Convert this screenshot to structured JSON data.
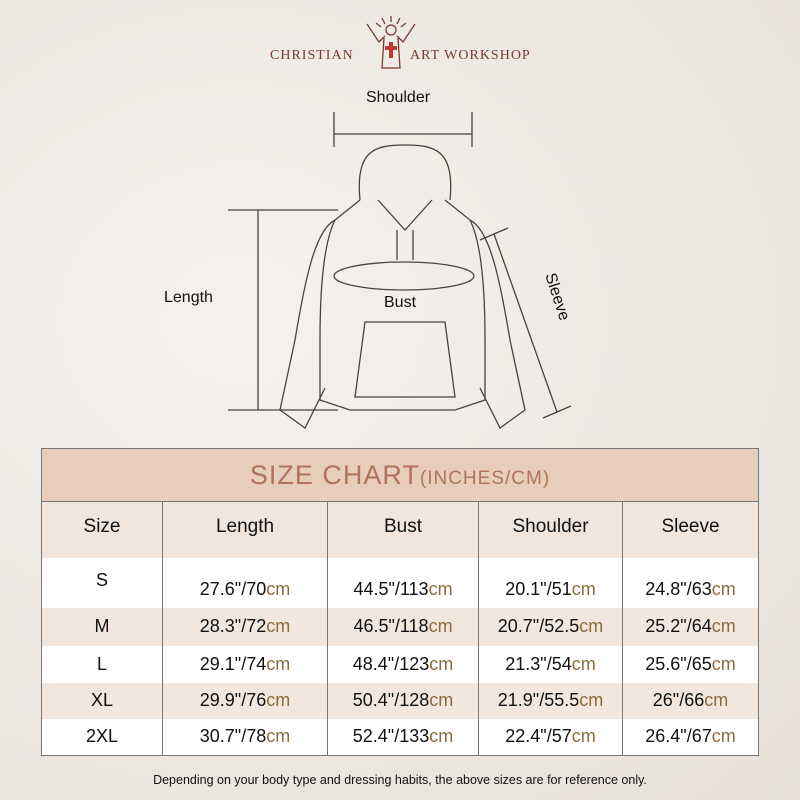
{
  "logo": {
    "left": "CHRISTIAN",
    "right": "ART WORKSHOP"
  },
  "diagram": {
    "shoulder": "Shoulder",
    "length": "Length",
    "bust": "Bust",
    "sleeve": "Sleeve"
  },
  "table": {
    "title": "SIZE CHART",
    "title_units": "(INCHES/CM)",
    "headers": [
      "Size",
      "Length",
      "Bust",
      "Shoulder",
      "Sleeve"
    ],
    "rows": [
      {
        "size": "S",
        "cells": [
          [
            "27.6\"/70",
            "cm"
          ],
          [
            "44.5\"/113",
            "cm"
          ],
          [
            "20.1\"/51",
            "cm"
          ],
          [
            "24.8\"/63",
            "cm"
          ]
        ]
      },
      {
        "size": "M",
        "cells": [
          [
            "28.3\"/72",
            "cm"
          ],
          [
            "46.5\"/118",
            "cm"
          ],
          [
            "20.7\"/52.5",
            "cm"
          ],
          [
            "25.2\"/64",
            "cm"
          ]
        ]
      },
      {
        "size": "L",
        "cells": [
          [
            "29.1\"/74",
            "cm"
          ],
          [
            "48.4\"/123",
            "cm"
          ],
          [
            "21.3\"/54",
            "cm"
          ],
          [
            "25.6\"/65",
            "cm"
          ]
        ]
      },
      {
        "size": "XL",
        "cells": [
          [
            "29.9\"/76",
            "cm"
          ],
          [
            "50.4\"/128",
            "cm"
          ],
          [
            "21.9\"/55.5",
            "cm"
          ],
          [
            "26\"/66",
            "cm"
          ]
        ]
      },
      {
        "size": "2XL",
        "cells": [
          [
            "30.7\"/78",
            "cm"
          ],
          [
            "52.4\"/133",
            "cm"
          ],
          [
            "22.4\"/57",
            "cm"
          ],
          [
            "26.4\"/67",
            "cm"
          ]
        ]
      }
    ]
  },
  "note": "Depending on your body type and dressing habits, the above sizes are for reference only.",
  "colors": {
    "title_bg": "#e8cdbc",
    "title_text": "#b0725a",
    "cm": "#8a6a3f",
    "logo": "#7a3a2e"
  }
}
